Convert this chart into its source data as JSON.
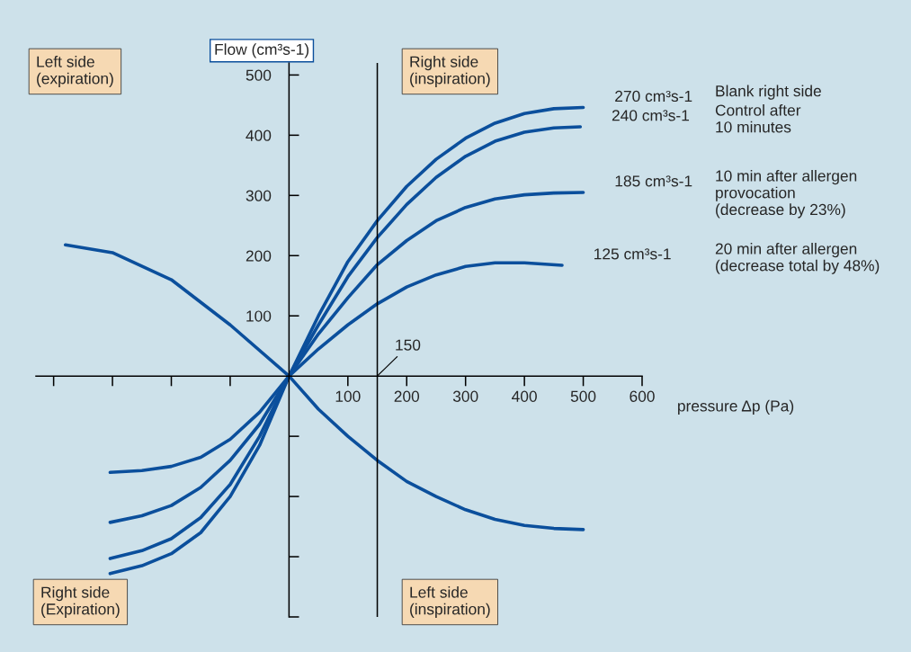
{
  "chart_data": {
    "type": "line",
    "xlabel": "pressure Δp (Pa)",
    "ylabel": "Flow (cm³s-1)",
    "xlim": [
      -430,
      600
    ],
    "ylim": [
      -400,
      520
    ],
    "xticks": [
      {
        "value": -400,
        "label": null
      },
      {
        "value": -300,
        "label": null
      },
      {
        "value": -200,
        "label": null
      },
      {
        "value": -100,
        "label": null
      },
      100,
      200,
      300,
      400,
      500,
      600
    ],
    "yticks": [
      {
        "value": -400,
        "label": null
      },
      {
        "value": -300,
        "label": null
      },
      {
        "value": -200,
        "label": null
      },
      {
        "value": -100,
        "label": null
      },
      100,
      200,
      300,
      400,
      500
    ],
    "grid": false,
    "legend": false,
    "line_style": "solid",
    "marker": "none",
    "series": [
      {
        "name": "Blank right side",
        "color": "#0b4f9c",
        "x": [
          -304,
          -250,
          -200,
          -150,
          -100,
          -50,
          0,
          50,
          100,
          150,
          200,
          250,
          300,
          350,
          400,
          450,
          500
        ],
        "values": [
          -328,
          -315,
          -295,
          -260,
          -200,
          -115,
          0,
          100,
          190,
          258,
          315,
          360,
          395,
          420,
          436,
          444,
          446
        ]
      },
      {
        "name": "Control after\n10 minutes",
        "color": "#0b4f9c",
        "x": [
          -304,
          -250,
          -200,
          -150,
          -100,
          -50,
          0,
          50,
          100,
          150,
          200,
          250,
          300,
          350,
          400,
          450,
          495
        ],
        "values": [
          -303,
          -290,
          -270,
          -235,
          -180,
          -100,
          0,
          85,
          165,
          230,
          285,
          330,
          365,
          390,
          405,
          412,
          414
        ]
      },
      {
        "name": "10 min after allergen\nprovocation\n(decrease by 23%)",
        "color": "#0b4f9c",
        "x": [
          -304,
          -250,
          -200,
          -150,
          -100,
          -50,
          0,
          50,
          100,
          150,
          200,
          250,
          300,
          350,
          400,
          450,
          500
        ],
        "values": [
          -243,
          -232,
          -215,
          -185,
          -140,
          -80,
          0,
          70,
          130,
          185,
          225,
          258,
          280,
          294,
          301,
          304,
          305
        ]
      },
      {
        "name": "20 min after allergen\n(decrease total by 48%)",
        "color": "#0b4f9c",
        "x": [
          -304,
          -250,
          -200,
          -150,
          -100,
          -50,
          0,
          50,
          100,
          150,
          200,
          250,
          300,
          350,
          400,
          464
        ],
        "values": [
          -160,
          -157,
          -150,
          -135,
          -105,
          -60,
          0,
          45,
          85,
          120,
          148,
          168,
          182,
          188,
          188,
          184
        ]
      },
      {
        "color": "#0b4f9c",
        "x": [
          -380,
          -300,
          -200,
          -100,
          0,
          50,
          100,
          150,
          200,
          250,
          300,
          350,
          400,
          450,
          500
        ],
        "values": [
          218,
          205,
          160,
          85,
          0,
          -55,
          -100,
          -140,
          -175,
          -200,
          -222,
          -238,
          -248,
          -253,
          -255
        ]
      }
    ],
    "ref_lines": [
      {
        "axis": "x",
        "value": 150,
        "label": "150",
        "color": "#000000",
        "line_style": "solid"
      }
    ],
    "annotations": [
      {
        "text": "270 cm³s-1",
        "x": 500,
        "y": 446
      },
      {
        "text": "240 cm³s-1",
        "x": 495,
        "y": 414
      },
      {
        "text": "185 cm³s-1",
        "x": 500,
        "y": 305
      },
      {
        "text": "125 cm³s-1",
        "x": 464,
        "y": 184
      },
      "Left side\n(expiration)",
      "Right side\n(inspiration)",
      "Right side\n(Expiration)",
      "Left side\n(inspiration)"
    ]
  }
}
